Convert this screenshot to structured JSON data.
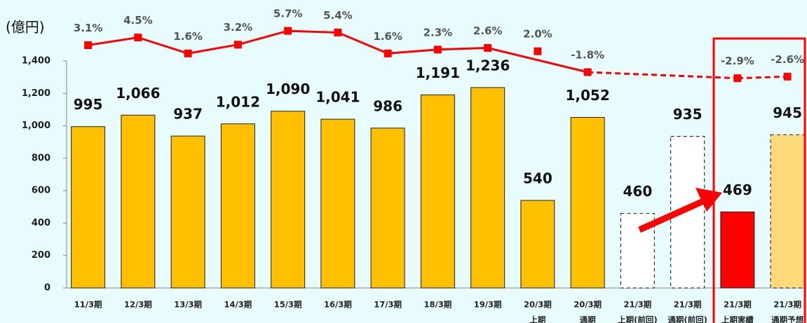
{
  "chart_data": {
    "type": "bar",
    "unit_label": "(億円)",
    "categories": [
      [
        "11/3期"
      ],
      [
        "12/3期"
      ],
      [
        "13/3期"
      ],
      [
        "14/3期"
      ],
      [
        "15/3期"
      ],
      [
        "16/3期"
      ],
      [
        "17/3期"
      ],
      [
        "18/3期"
      ],
      [
        "19/3期"
      ],
      [
        "20/3期",
        "上期"
      ],
      [
        "20/3期",
        "通期"
      ],
      [
        "21/3期",
        "上期(前回)"
      ],
      [
        "21/3期",
        "通期(前回)"
      ],
      [
        "21/3期",
        "上期実績"
      ],
      [
        "21/3期",
        "通期予想"
      ]
    ],
    "values": [
      995,
      1066,
      937,
      1012,
      1090,
      1041,
      986,
      1191,
      1236,
      540,
      1052,
      460,
      935,
      469,
      945
    ],
    "value_labels": [
      "995",
      "1,066",
      "937",
      "1,012",
      "1,090",
      "1,041",
      "986",
      "1,191",
      "1,236",
      "540",
      "1,052",
      "460",
      "935",
      "469",
      "945"
    ],
    "colors": [
      "#ffc000",
      "#ffc000",
      "#ffc000",
      "#ffc000",
      "#ffc000",
      "#ffc000",
      "#ffc000",
      "#ffc000",
      "#ffc000",
      "#ffc000",
      "#ffc000",
      "#ffffff",
      "#ffffff",
      "#ff0000",
      "#ffd97a"
    ],
    "dashed": [
      false,
      false,
      false,
      false,
      false,
      false,
      false,
      false,
      false,
      false,
      false,
      true,
      true,
      false,
      true
    ],
    "ylim": [
      0,
      1400
    ],
    "yticks": [
      0,
      {
        "value": 200,
        "label": "200"
      },
      {
        "value": 400,
        "label": "400"
      },
      {
        "value": 600,
        "label": "600"
      },
      {
        "value": 800,
        "label": "800"
      },
      {
        "value": 1000,
        "label": "1,000"
      },
      {
        "value": 1200,
        "label": "1,200"
      },
      {
        "value": 1400,
        "label": "1,400"
      }
    ],
    "y2lim": [
      -6,
      8
    ],
    "line_color": "#ff0000",
    "line_series": [
      {
        "style": "solid",
        "x": [
          0,
          1,
          2,
          3,
          4,
          5,
          6,
          7,
          8,
          10
        ],
        "values": [
          3.1,
          4.5,
          1.6,
          3.2,
          5.7,
          5.4,
          1.6,
          2.3,
          2.6,
          -1.8
        ],
        "value_labels": [
          "3.1%",
          "4.5%",
          "1.6%",
          "3.2%",
          "5.7%",
          "5.4%",
          "1.6%",
          "2.3%",
          "2.6%",
          "-1.8%"
        ]
      },
      {
        "style": "dashed",
        "x": [
          13,
          14
        ],
        "values": [
          -2.9,
          -2.6
        ],
        "value_labels": [
          "-2.9%",
          "-2.6%"
        ]
      },
      {
        "style": "none",
        "x": [
          9
        ],
        "values": [
          2.0
        ],
        "value_labels": [
          "2.0%"
        ]
      }
    ]
  }
}
